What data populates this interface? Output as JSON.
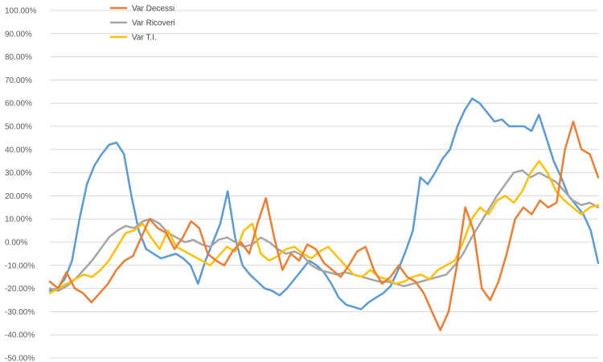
{
  "chart_data": {
    "type": "line",
    "title": "",
    "xlabel": "",
    "ylabel": "",
    "ylim": [
      -50,
      100
    ],
    "y_tick_labels": [
      "100.00%",
      "90.00%",
      "80.00%",
      "70.00%",
      "60.00%",
      "50.00%",
      "40.00%",
      "30.00%",
      "20.00%",
      "10.00%",
      "0.00%",
      "-10.00%",
      "-20.00%",
      "-30.00%",
      "-40.00%",
      "-50.00%"
    ],
    "grid": true,
    "legend_position": "top-left",
    "series": [
      {
        "name": "Var Decessi",
        "color": "#ED7D31",
        "values": [
          -17,
          -20,
          -13,
          -20,
          -22,
          -26,
          -22,
          -18,
          -12,
          -8,
          -6,
          2,
          10,
          6,
          4,
          -3,
          2,
          9,
          6,
          -5,
          -8,
          -10,
          -4,
          0,
          -5,
          8,
          19,
          2,
          -12,
          -5,
          -8,
          -1,
          -3,
          -9,
          -12,
          -15,
          -10,
          -4,
          -2,
          -12,
          -18,
          -15,
          -10,
          -15,
          -17,
          -22,
          -30,
          -38,
          -30,
          -10,
          15,
          5,
          -20,
          -25,
          -17,
          -5,
          10,
          15,
          12,
          18,
          15,
          17,
          40,
          52,
          40,
          38,
          28
        ]
      },
      {
        "name": "Var Ricoveri",
        "color": "#A5A5A5",
        "values": [
          -20,
          -21,
          -19,
          -16,
          -12,
          -8,
          -3,
          2,
          5,
          7,
          6,
          9,
          10,
          8,
          4,
          2,
          0,
          1,
          -1,
          -2,
          1,
          2,
          0,
          -2,
          -1,
          2,
          0,
          -3,
          -5,
          -4,
          -6,
          -10,
          -12,
          -13,
          -14,
          -13,
          -14,
          -15,
          -16,
          -17,
          -17,
          -18,
          -19,
          -18,
          -17,
          -16,
          -15,
          -14,
          -10,
          -5,
          2,
          8,
          14,
          20,
          25,
          30,
          31,
          28,
          30,
          28,
          26,
          22,
          18,
          16,
          17,
          15
        ]
      },
      {
        "name": "Var T.I.",
        "color": "#FFC000",
        "values": [
          -22,
          -20,
          -18,
          -16,
          -14,
          -15,
          -12,
          -8,
          -2,
          4,
          5,
          8,
          2,
          -3,
          5,
          -2,
          -4,
          -6,
          -8,
          -10,
          -6,
          -2,
          -4,
          5,
          8,
          -5,
          -8,
          -6,
          -3,
          -2,
          -5,
          -7,
          -4,
          -2,
          -6,
          -10,
          -14,
          -15,
          -12,
          -15,
          -16,
          -18,
          -17,
          -15,
          -14,
          -16,
          -12,
          -10,
          -8,
          0,
          10,
          15,
          12,
          18,
          20,
          17,
          22,
          30,
          35,
          30,
          22,
          18,
          15,
          12,
          15,
          16
        ]
      },
      {
        "name": "",
        "color": "#5B9BD5",
        "values": [
          -21,
          -20,
          -16,
          -8,
          10,
          25,
          33,
          38,
          42,
          43,
          38,
          20,
          5,
          -3,
          -5,
          -7,
          -6,
          -5,
          -7,
          -10,
          -18,
          -8,
          0,
          8,
          22,
          2,
          -10,
          -14,
          -17,
          -20,
          -21,
          -23,
          -20,
          -16,
          -12,
          -8,
          -10,
          -13,
          -18,
          -24,
          -27,
          -28,
          -29,
          -26,
          -24,
          -22,
          -19,
          -12,
          -4,
          5,
          28,
          25,
          30,
          36,
          40,
          50,
          57,
          62,
          60,
          56,
          52,
          53,
          50,
          50,
          50,
          48,
          55,
          45,
          35,
          28,
          20,
          16,
          12,
          5,
          -9
        ]
      }
    ]
  }
}
